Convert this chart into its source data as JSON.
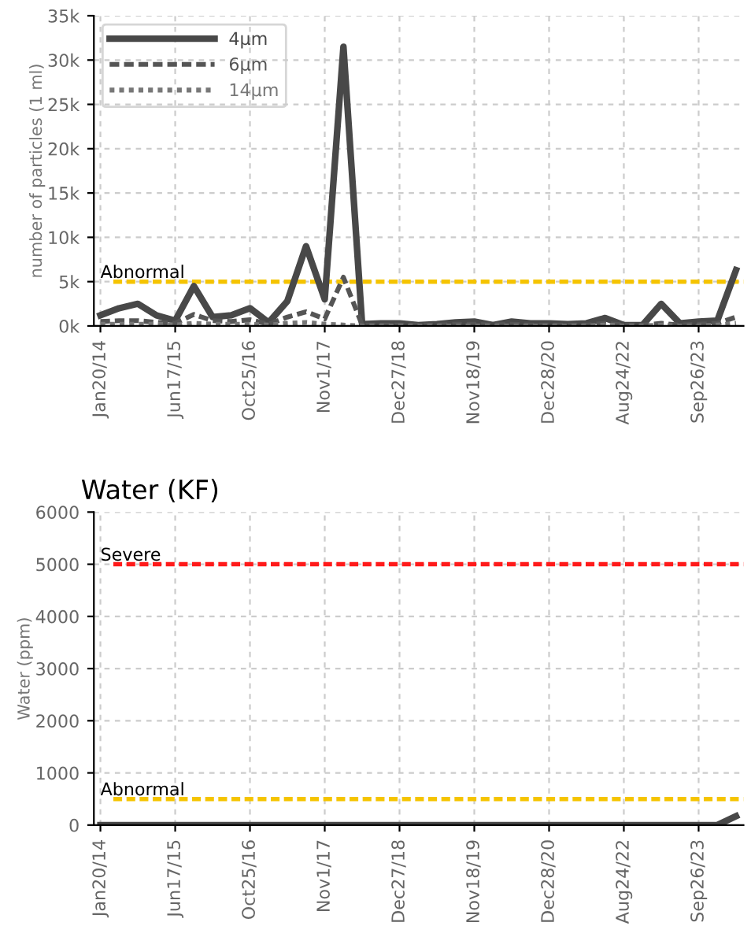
{
  "chart_data": [
    {
      "type": "line",
      "ylabel": "number of particles (1 ml)",
      "categories": [
        "Jan20/14",
        null,
        null,
        null,
        "Jun17/15",
        null,
        null,
        null,
        "Oct25/16",
        null,
        null,
        null,
        "Nov1/17",
        null,
        null,
        null,
        "Dec27/18",
        null,
        null,
        null,
        "Nov18/19",
        null,
        null,
        null,
        "Dec28/20",
        null,
        null,
        null,
        "Aug24/22",
        null,
        null,
        null,
        "Sep26/23",
        null,
        null
      ],
      "series": [
        {
          "name": "4μm",
          "color": "#484848",
          "line_style": "solid",
          "values": [
            1200,
            2000,
            2500,
            1200,
            600,
            4500,
            1000,
            1200,
            2000,
            400,
            2800,
            9000,
            3000,
            31500,
            200,
            300,
            300,
            100,
            200,
            400,
            500,
            100,
            500,
            300,
            300,
            200,
            300,
            900,
            100,
            100,
            2500,
            300,
            500,
            600,
            6300
          ]
        },
        {
          "name": "6μm",
          "color": "#555555",
          "line_style": "dashed",
          "values": [
            500,
            600,
            600,
            400,
            300,
            1300,
            600,
            500,
            700,
            200,
            1000,
            1600,
            800,
            5500,
            100,
            100,
            100,
            100,
            100,
            200,
            200,
            100,
            200,
            100,
            100,
            100,
            100,
            300,
            100,
            100,
            300,
            100,
            200,
            300,
            1000
          ]
        },
        {
          "name": "14μm",
          "color": "#777777",
          "line_style": "dotted",
          "values": [
            200,
            200,
            200,
            200,
            100,
            300,
            200,
            200,
            200,
            100,
            300,
            400,
            200,
            100,
            0,
            0,
            0,
            0,
            0,
            0,
            0,
            0,
            0,
            0,
            0,
            0,
            0,
            100,
            0,
            0,
            100,
            0,
            0,
            100,
            300
          ]
        }
      ],
      "ylim": [
        0,
        35000
      ],
      "yticks": [
        {
          "value": 0,
          "label": "0k"
        },
        {
          "value": 5000,
          "label": "5k"
        },
        {
          "value": 10000,
          "label": "10k"
        },
        {
          "value": 15000,
          "label": "15k"
        },
        {
          "value": 20000,
          "label": "20k"
        },
        {
          "value": 25000,
          "label": "25k"
        },
        {
          "value": 30000,
          "label": "30k"
        },
        {
          "value": 35000,
          "label": "35k"
        }
      ],
      "ref_lines": [
        {
          "axis": "y",
          "value": 5000,
          "label": "Abnormal",
          "color": "#f5c400",
          "line_style": "dashed"
        }
      ],
      "grid": true,
      "legend": "top left"
    },
    {
      "type": "line",
      "title": "Water (KF)",
      "ylabel": "Water (ppm)",
      "categories": [
        "Jan20/14",
        null,
        null,
        null,
        "Jun17/15",
        null,
        null,
        null,
        "Oct25/16",
        null,
        null,
        null,
        "Nov1/17",
        null,
        null,
        null,
        "Dec27/18",
        null,
        null,
        null,
        "Nov18/19",
        null,
        null,
        null,
        "Dec28/20",
        null,
        null,
        null,
        "Aug24/22",
        null,
        null,
        null,
        "Sep26/23",
        null,
        null
      ],
      "series": [
        {
          "color": "#484848",
          "line_style": "solid",
          "values": [
            0,
            0,
            0,
            0,
            0,
            0,
            0,
            0,
            0,
            0,
            0,
            0,
            0,
            0,
            0,
            0,
            0,
            0,
            0,
            0,
            0,
            0,
            0,
            0,
            0,
            0,
            0,
            0,
            0,
            0,
            0,
            0,
            0,
            0,
            170
          ]
        }
      ],
      "ylim": [
        0,
        6000
      ],
      "yticks": [
        0,
        1000,
        2000,
        3000,
        4000,
        5000,
        6000
      ],
      "ref_lines": [
        {
          "axis": "y",
          "value": 5000,
          "label": "Severe",
          "color": "#ff1a1a",
          "line_style": "dashed"
        },
        {
          "axis": "y",
          "value": 500,
          "label": "Abnormal",
          "color": "#f5c400",
          "line_style": "dashed"
        }
      ],
      "grid": true
    }
  ]
}
